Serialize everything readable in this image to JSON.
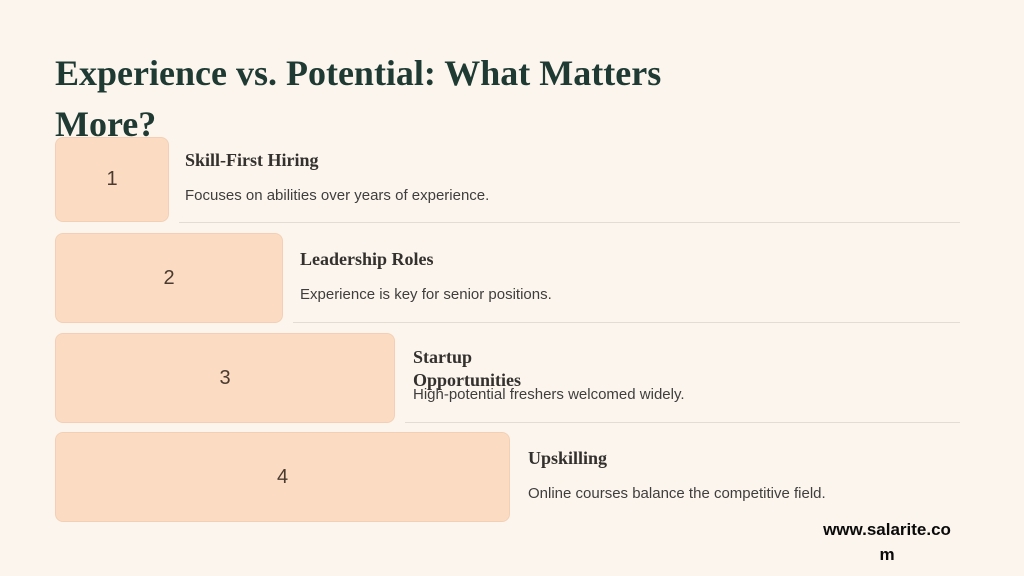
{
  "slide": {
    "title": "Experience vs. Potential: What Matters More?",
    "items": [
      {
        "number": "1",
        "heading": "Skill-First Hiring",
        "body": "Focuses on abilities over years of experience."
      },
      {
        "number": "2",
        "heading": "Leadership Roles",
        "body": "Experience is key for senior positions."
      },
      {
        "number": "3",
        "heading": "Startup Opportunities",
        "body": "High-potential freshers welcomed widely."
      },
      {
        "number": "4",
        "heading": "Upskilling",
        "body": "Online courses balance the competitive field."
      }
    ],
    "footer": "www.salarite.com"
  },
  "colors": {
    "background": "#fbf5ed",
    "box_fill": "#fbdcc2",
    "box_border": "#f3d0b5",
    "title": "#1e3a33",
    "heading": "#33302d",
    "body": "#3f3e3d",
    "number": "#4a3a30",
    "divider": "#e2dcd4",
    "footer": "#0a0a0a"
  }
}
